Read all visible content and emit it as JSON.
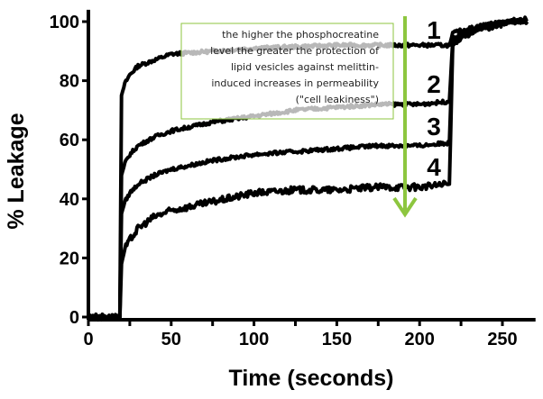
{
  "chart_data": {
    "type": "line",
    "xlabel": "Time (seconds)",
    "ylabel": "% Leakage",
    "xlim": [
      0,
      270
    ],
    "ylim": [
      0,
      104
    ],
    "xticks": [
      0,
      50,
      100,
      150,
      200,
      250
    ],
    "yticks": [
      0,
      20,
      40,
      60,
      80,
      100
    ],
    "grid": false,
    "line_color": "#000000",
    "series": [
      {
        "name": "1",
        "x": [
          0,
          19,
          20,
          22,
          25,
          30,
          40,
          50,
          75,
          100,
          125,
          150,
          175,
          200,
          218,
          220,
          225,
          240,
          255,
          265
        ],
        "y": [
          0,
          0,
          75,
          79,
          82,
          85,
          87,
          89,
          90,
          91,
          91.5,
          92,
          92,
          92,
          92,
          96,
          97,
          99,
          100,
          101
        ]
      },
      {
        "name": "2",
        "x": [
          0,
          19,
          20,
          22,
          25,
          30,
          40,
          50,
          75,
          100,
          125,
          150,
          175,
          200,
          218,
          220,
          225,
          240,
          255,
          265
        ],
        "y": [
          0,
          0,
          48,
          52,
          55,
          58,
          61,
          63,
          66,
          68,
          70,
          71,
          72,
          72,
          73,
          94,
          96,
          99,
          100,
          100
        ]
      },
      {
        "name": "3",
        "x": [
          0,
          19,
          20,
          22,
          25,
          30,
          40,
          50,
          75,
          100,
          125,
          150,
          175,
          200,
          218,
          220,
          225,
          240,
          255,
          265
        ],
        "y": [
          0,
          0,
          35,
          39,
          42,
          45,
          48,
          50,
          53,
          55,
          56,
          57,
          58,
          58,
          59,
          93,
          95,
          98,
          100,
          100
        ]
      },
      {
        "name": "4",
        "x": [
          0,
          19,
          20,
          22,
          25,
          30,
          40,
          50,
          75,
          100,
          125,
          150,
          175,
          200,
          218,
          220,
          225,
          240,
          255,
          265
        ],
        "y": [
          0,
          0,
          18,
          23,
          26,
          30,
          34,
          36,
          39,
          42,
          43,
          43,
          44,
          44,
          45,
          92,
          95,
          98,
          100,
          100
        ]
      }
    ],
    "annotation": {
      "lines": [
        "the higher the phosphocreatine",
        "level the greater the protection of",
        "lipid vesicles against melittin-",
        "induced increases in permeability",
        "(\"cell leakiness\")"
      ],
      "border_color": "#8dc63f",
      "arrow_color": "#8dc63f",
      "arrow_direction": "down"
    }
  }
}
